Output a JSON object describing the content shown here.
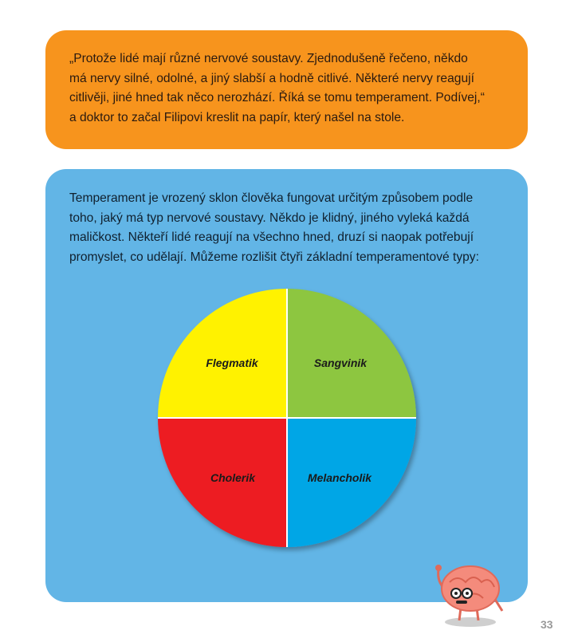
{
  "quote_box": {
    "color": "#f7941d",
    "lines": [
      "„Protože lidé mají různé nervové soustavy. Zjednodušeně řečeno, někdo",
      "má nervy silné, odolné, a jiný slabší a hodně citlivé. Některé nervy reagují",
      "citlivěji, jiné hned tak něco nerozhází. Říká se tomu temperament. Podívej,“",
      "a doktor to začal Filipovi kreslit na papír, který našel na stole."
    ]
  },
  "info_box": {
    "color": "#62b5e6",
    "lines": [
      "Temperament je vrozený sklon člověka fungovat určitým způsobem podle",
      "toho, jaký má typ nervové soustavy. Někdo je klidný, jiného vyleká každá",
      "maličkost. Někteří lidé reagují na všechno hned, druzí si naopak potřebují",
      "promyslet, co udělají. Můžeme rozlišit čtyři základní temperamentové typy:"
    ]
  },
  "diagram": {
    "quadrants": [
      {
        "label": "Flegmatik",
        "color": "#fff200"
      },
      {
        "label": "Sangvinik",
        "color": "#8dc63f"
      },
      {
        "label": "Cholerik",
        "color": "#ed1c24"
      },
      {
        "label": "Melancholik",
        "color": "#00a6e6"
      }
    ]
  },
  "mascot": {
    "icon": "brain-mascot-icon"
  },
  "page_number": "33"
}
